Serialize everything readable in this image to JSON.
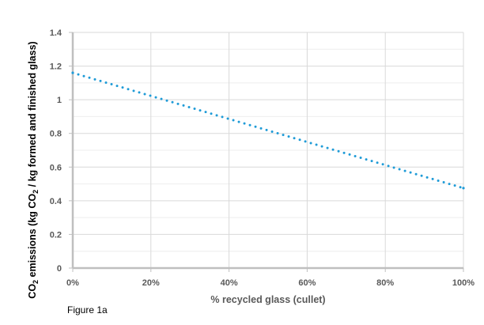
{
  "chart_data": {
    "type": "line",
    "title": "",
    "caption": "Figure 1a",
    "xlabel": "% recycled glass (cullet)",
    "ylabel_parts": [
      "CO",
      "2",
      " emissions (kg CO",
      "2",
      " / kg formed and finished glass)"
    ],
    "x": [
      0,
      100
    ],
    "series": [
      {
        "values": [
          1.16,
          0.475
        ],
        "color": "#1f9bd7",
        "style": "dotted"
      }
    ],
    "xlim": [
      0,
      100
    ],
    "ylim": [
      0,
      1.4
    ],
    "xticks": [
      0,
      20,
      40,
      60,
      80,
      100
    ],
    "xtick_labels": [
      "0%",
      "20%",
      "40%",
      "60%",
      "80%",
      "100%"
    ],
    "yticks": [
      0,
      0.2,
      0.4,
      0.6,
      0.8,
      1,
      1.2,
      1.4
    ],
    "ytick_labels": [
      "0",
      "0.2",
      "0.4",
      "0.6",
      "0.8",
      "1",
      "1.2",
      "1.4"
    ],
    "grid": true,
    "minor_grid": true,
    "legend": "none"
  }
}
